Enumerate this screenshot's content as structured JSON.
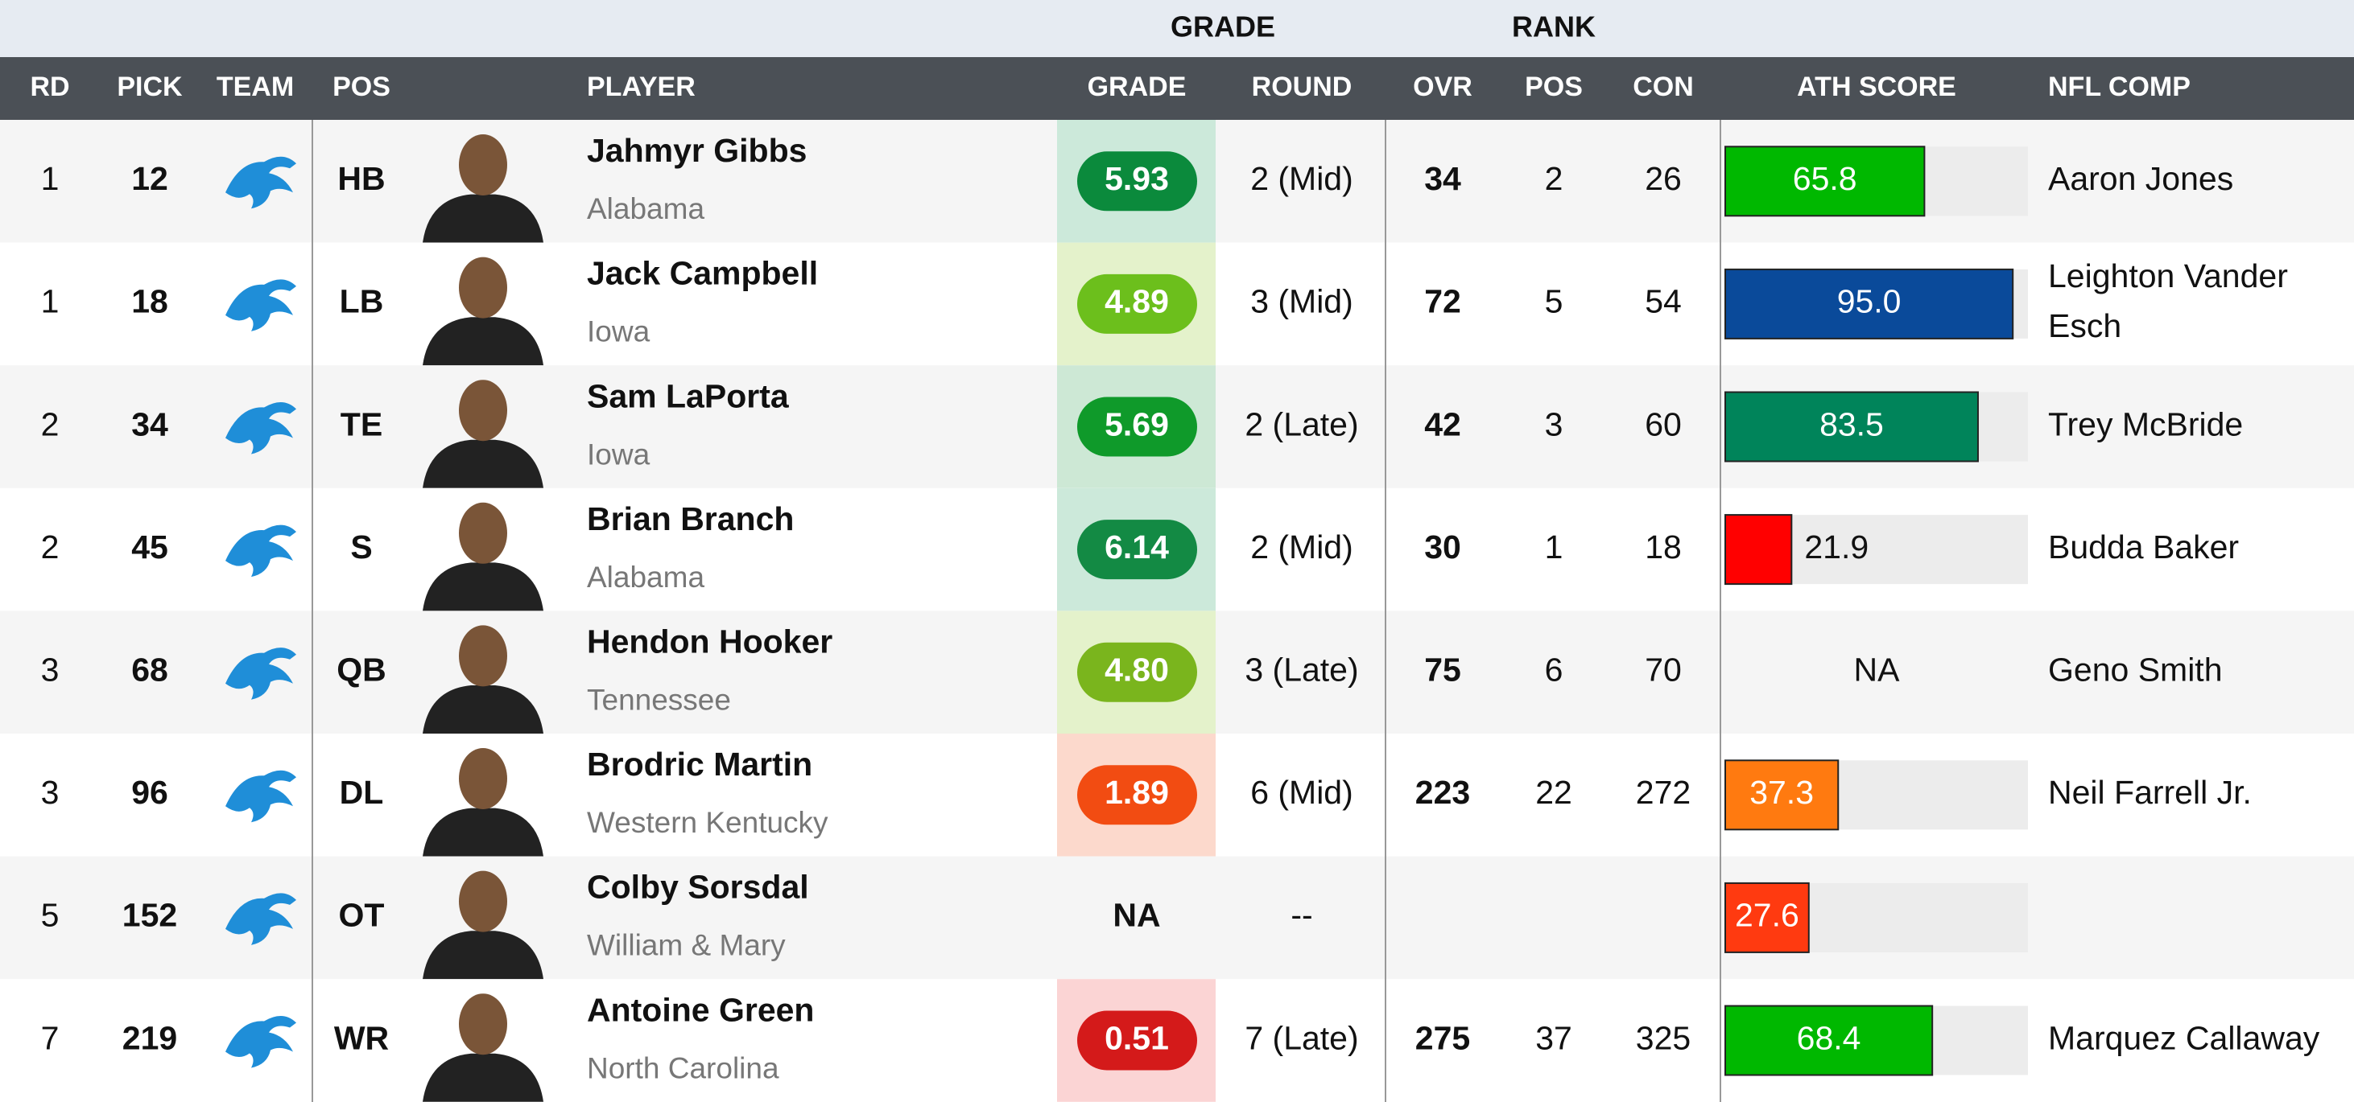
{
  "groups": [
    "GRADE",
    "RANK"
  ],
  "columns": [
    "RD",
    "PICK",
    "TEAM",
    "POS",
    "PLAYER",
    "GRADE",
    "ROUND",
    "OVR",
    "POS",
    "CON",
    "ATH SCORE",
    "NFL COMP"
  ],
  "ath_range": [
    0,
    100
  ],
  "rows": [
    {
      "rd": "1",
      "pick": "12",
      "pos": "HB",
      "player": "Jahmyr Gibbs",
      "school": "Alabama",
      "grade": "5.93",
      "grade_color": "#0b8a3c",
      "grade_bg": "#cce9da",
      "round": "2 (Mid)",
      "ovr": "34",
      "pos_rank": "2",
      "con": "26",
      "ath": "65.8",
      "ath_color": "#00b800",
      "comp": "Aaron Jones"
    },
    {
      "rd": "1",
      "pick": "18",
      "pos": "LB",
      "player": "Jack Campbell",
      "school": "Iowa",
      "grade": "4.89",
      "grade_color": "#6cbf1c",
      "grade_bg": "#e4f2cb",
      "round": "3 (Mid)",
      "ovr": "72",
      "pos_rank": "5",
      "con": "54",
      "ath": "95.0",
      "ath_color": "#0a4a9a",
      "comp": "Leighton Vander Esch"
    },
    {
      "rd": "2",
      "pick": "34",
      "pos": "TE",
      "player": "Sam LaPorta",
      "school": "Iowa",
      "grade": "5.69",
      "grade_color": "#0f9a2a",
      "grade_bg": "#cde8d5",
      "round": "2 (Late)",
      "ovr": "42",
      "pos_rank": "3",
      "con": "60",
      "ath": "83.5",
      "ath_color": "#00845a",
      "comp": "Trey McBride"
    },
    {
      "rd": "2",
      "pick": "45",
      "pos": "S",
      "player": "Brian Branch",
      "school": "Alabama",
      "grade": "6.14",
      "grade_color": "#138a44",
      "grade_bg": "#cce9da",
      "round": "2 (Mid)",
      "ovr": "30",
      "pos_rank": "1",
      "con": "18",
      "ath": "21.9",
      "ath_color": "#ff0000",
      "comp": "Budda Baker"
    },
    {
      "rd": "3",
      "pick": "68",
      "pos": "QB",
      "player": "Hendon Hooker",
      "school": "Tennessee",
      "grade": "4.80",
      "grade_color": "#7ab51d",
      "grade_bg": "#e4f2cb",
      "round": "3 (Late)",
      "ovr": "75",
      "pos_rank": "6",
      "con": "70",
      "ath": "NA",
      "ath_color": null,
      "comp": "Geno Smith"
    },
    {
      "rd": "3",
      "pick": "96",
      "pos": "DL",
      "player": "Brodric Martin",
      "school": "Western Kentucky",
      "grade": "1.89",
      "grade_color": "#f24c12",
      "grade_bg": "#fcd9cc",
      "round": "6 (Mid)",
      "ovr": "223",
      "pos_rank": "22",
      "con": "272",
      "ath": "37.3",
      "ath_color": "#ff7a10",
      "comp": "Neil Farrell Jr."
    },
    {
      "rd": "5",
      "pick": "152",
      "pos": "OT",
      "player": "Colby Sorsdal",
      "school": "William & Mary",
      "grade": "NA",
      "grade_color": null,
      "grade_bg": null,
      "round": "--",
      "ovr": null,
      "pos_rank": null,
      "con": null,
      "ath": "27.6",
      "ath_color": "#ff3a10",
      "comp": null
    },
    {
      "rd": "7",
      "pick": "219",
      "pos": "WR",
      "player": "Antoine Green",
      "school": "North Carolina",
      "grade": "0.51",
      "grade_color": "#d41a1a",
      "grade_bg": "#fbd4d4",
      "round": "7 (Late)",
      "ovr": "275",
      "pos_rank": "37",
      "con": "325",
      "ath": "68.4",
      "ath_color": "#00b800",
      "comp": "Marquez Callaway"
    }
  ]
}
